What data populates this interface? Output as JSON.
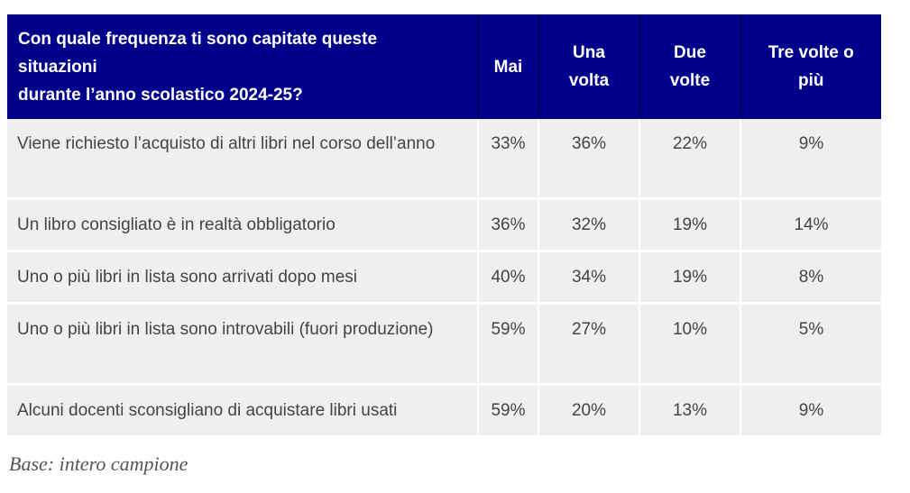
{
  "table": {
    "headers": {
      "question": "Con quale frequenza ti sono capitate queste\nsituazioni\ndurante l’anno scolastico 2024-25?",
      "mai": "Mai",
      "una_volta": "Una\nvolta",
      "due_volte": "Due\nvolte",
      "tre_volte": "Tre volte o\npiù"
    },
    "rows": [
      {
        "question": "Viene richiesto l’acquisto di altri libri nel corso dell’anno",
        "mai": "33%",
        "una_volta": "36%",
        "due_volte": "22%",
        "tre_volte": "9%"
      },
      {
        "question": "Un libro consigliato è in realtà obbligatorio",
        "mai": "36%",
        "una_volta": "32%",
        "due_volte": "19%",
        "tre_volte": "14%"
      },
      {
        "question": "Uno o più libri in lista sono arrivati dopo mesi",
        "mai": "40%",
        "una_volta": "34%",
        "due_volte": "19%",
        "tre_volte": "8%"
      },
      {
        "question": "Uno o più libri in lista sono introvabili (fuori produzione)",
        "mai": "59%",
        "una_volta": "27%",
        "due_volte": "10%",
        "tre_volte": "5%"
      },
      {
        "question": "Alcuni docenti sconsigliano di acquistare libri usati",
        "mai": "59%",
        "una_volta": "20%",
        "due_volte": "13%",
        "tre_volte": "9%"
      }
    ]
  },
  "footnote": "Base: intero campione",
  "colors": {
    "header_background": "#00008b",
    "header_text": "#ffffff",
    "row_background": "#efefef",
    "row_text": "#444444"
  }
}
